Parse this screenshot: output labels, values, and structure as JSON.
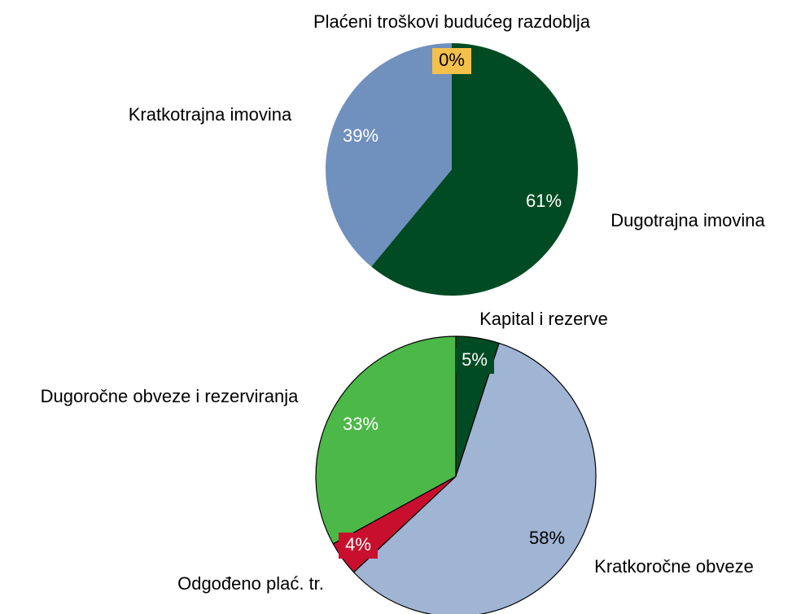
{
  "chart_data": [
    {
      "type": "pie",
      "categories": [
        "Dugotrajna imovina",
        "Kratkotrajna imovina",
        "Plaćeni troškovi budućeg razdoblja"
      ],
      "values": [
        61,
        39,
        0
      ],
      "value_labels": [
        "61%",
        "39%",
        "0%"
      ],
      "colors": [
        "#004b23",
        "#7090bd",
        "#f3c14b"
      ]
    },
    {
      "type": "pie",
      "categories": [
        "Kapital i rezerve",
        "Kratkoročne obveze",
        "Odgođeno plać. tr.",
        "Dugoročne obveze i rezerviranja"
      ],
      "values": [
        5,
        58,
        4,
        33
      ],
      "value_labels": [
        "5%",
        "58%",
        "4%",
        "33%"
      ],
      "colors": [
        "#004b23",
        "#a0b4d4",
        "#c8102e",
        "#4cb848"
      ]
    }
  ]
}
